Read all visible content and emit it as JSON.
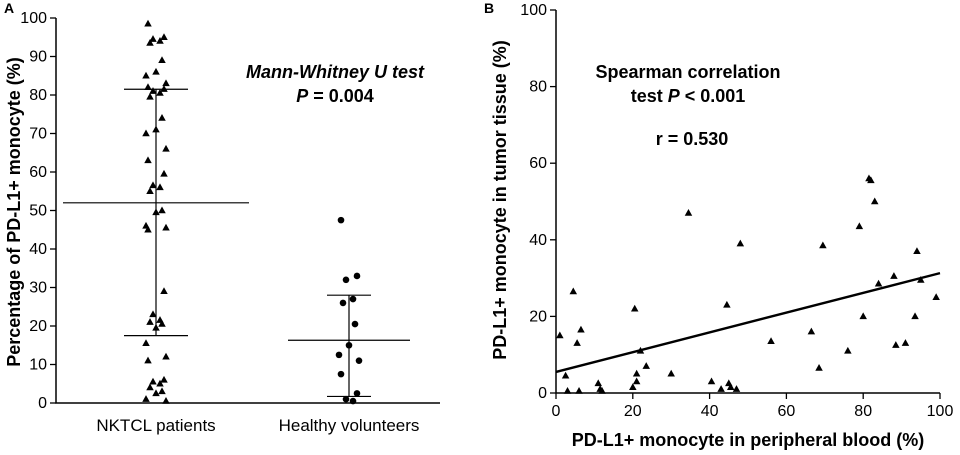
{
  "chart_data": [
    {
      "panel": "A",
      "type": "scatter",
      "title": "",
      "ylabel": "Percentage of PD-L1+ monocyte (%)",
      "ylim": [
        0,
        100
      ],
      "yticks": [
        0,
        10,
        20,
        30,
        40,
        50,
        60,
        70,
        80,
        90,
        100
      ],
      "categories": [
        "NKTCL patients",
        "Healthy volunteers"
      ],
      "annotation": {
        "line1": "Mann-Whitney U test",
        "line2_prefix": "P",
        "line2_rest": " = 0.004"
      },
      "series": [
        {
          "name": "NKTCL patients",
          "marker": "triangle",
          "median": 52,
          "iqr": [
            17.5,
            81.5
          ],
          "values": [
            98.5,
            95,
            94.5,
            94,
            93.5,
            89,
            86,
            85,
            83,
            82,
            81.5,
            81,
            80.5,
            79.5,
            74,
            71,
            70,
            66,
            63,
            59.5,
            56.5,
            56,
            55,
            50,
            49.5,
            46,
            45.5,
            45,
            29,
            23,
            21.5,
            21,
            20.5,
            19.5,
            15.5,
            12,
            11,
            6,
            5.5,
            5,
            4,
            3,
            2.5,
            1,
            0.5
          ]
        },
        {
          "name": "Healthy volunteers",
          "marker": "circle",
          "median": 16.3,
          "iqr": [
            1.7,
            28
          ],
          "values": [
            47.5,
            33,
            32,
            27,
            26,
            20.5,
            15,
            12.5,
            11,
            7.5,
            2.5,
            1,
            0.5
          ]
        }
      ]
    },
    {
      "panel": "B",
      "type": "scatter",
      "title": "",
      "xlabel": "PD-L1+ monocyte in peripheral blood (%)",
      "ylabel": "PD-L1+ monocyte in tumor tissue (%)",
      "xlim": [
        0,
        100
      ],
      "ylim": [
        0,
        100
      ],
      "xticks": [
        0,
        20,
        40,
        60,
        80,
        100
      ],
      "yticks": [
        0,
        20,
        40,
        60,
        80,
        100
      ],
      "annotation": {
        "line1": "Spearman correlation",
        "line2_main": "test ",
        "line2_p": "P",
        "line2_rest": " < 0.001",
        "r_text": "r = 0.530"
      },
      "fit_line": {
        "x": [
          0,
          100
        ],
        "y": [
          5.5,
          31.3
        ]
      },
      "points": [
        {
          "x": 1,
          "y": 15
        },
        {
          "x": 2.5,
          "y": 4.5
        },
        {
          "x": 3,
          "y": 0.5
        },
        {
          "x": 4.5,
          "y": 26.5
        },
        {
          "x": 5.5,
          "y": 13
        },
        {
          "x": 6.5,
          "y": 16.5
        },
        {
          "x": 6,
          "y": 0.5
        },
        {
          "x": 11,
          "y": 2.5
        },
        {
          "x": 11.5,
          "y": 1
        },
        {
          "x": 12,
          "y": 0.5
        },
        {
          "x": 20,
          "y": 1.5
        },
        {
          "x": 20.5,
          "y": 22
        },
        {
          "x": 21,
          "y": 5
        },
        {
          "x": 21,
          "y": 3
        },
        {
          "x": 22,
          "y": 11
        },
        {
          "x": 23.5,
          "y": 7
        },
        {
          "x": 30,
          "y": 5
        },
        {
          "x": 34.5,
          "y": 47
        },
        {
          "x": 40.5,
          "y": 3
        },
        {
          "x": 43,
          "y": 1
        },
        {
          "x": 44.5,
          "y": 23
        },
        {
          "x": 45,
          "y": 2.5
        },
        {
          "x": 45.5,
          "y": 1.5
        },
        {
          "x": 47,
          "y": 1
        },
        {
          "x": 48,
          "y": 39
        },
        {
          "x": 56,
          "y": 13.5
        },
        {
          "x": 66.5,
          "y": 16
        },
        {
          "x": 68.5,
          "y": 6.5
        },
        {
          "x": 69.5,
          "y": 38.5
        },
        {
          "x": 76,
          "y": 11
        },
        {
          "x": 79,
          "y": 43.5
        },
        {
          "x": 80,
          "y": 20
        },
        {
          "x": 81.5,
          "y": 56
        },
        {
          "x": 82,
          "y": 55.5
        },
        {
          "x": 83,
          "y": 50
        },
        {
          "x": 84,
          "y": 28.5
        },
        {
          "x": 88,
          "y": 30.5
        },
        {
          "x": 88.5,
          "y": 12.5
        },
        {
          "x": 91,
          "y": 13
        },
        {
          "x": 93.5,
          "y": 20
        },
        {
          "x": 94,
          "y": 37
        },
        {
          "x": 95,
          "y": 29.5
        },
        {
          "x": 99,
          "y": 25
        }
      ]
    }
  ]
}
